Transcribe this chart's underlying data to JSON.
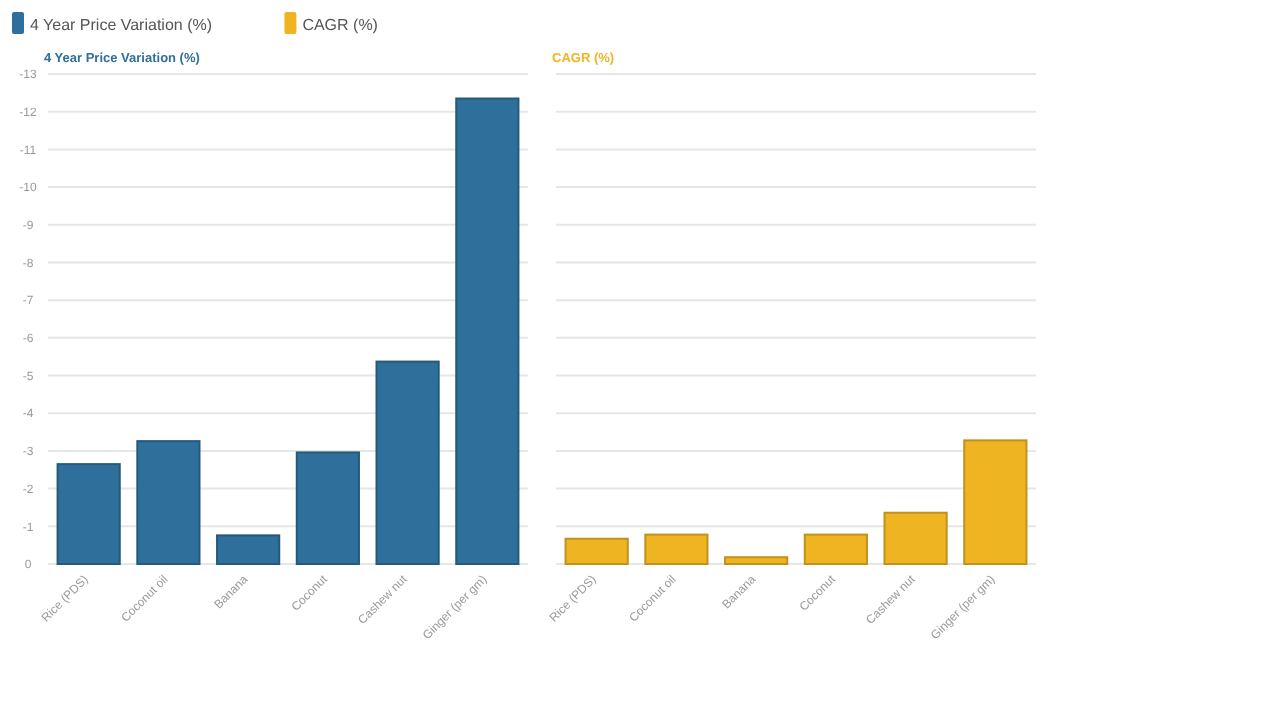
{
  "chart_data": [
    {
      "type": "bar",
      "title": "4 Year Price Variation (%)",
      "categories": [
        "Rice (PDS)",
        "Coconut oil",
        "Banana",
        "Coconut",
        "Cashew nut",
        "Ginger (per gm)"
      ],
      "series": [
        {
          "name": "4 Year Price Variation (%)",
          "color": "#2e6f9b",
          "values": [
            -2.65,
            -3.26,
            -0.76,
            -2.96,
            -5.37,
            -12.35
          ]
        }
      ],
      "ylim": [
        0,
        -13
      ],
      "yticks": [
        0,
        -1,
        -2,
        -3,
        -4,
        -5,
        -6,
        -7,
        -8,
        -9,
        -10,
        -11,
        -12,
        -13
      ],
      "grid": "y",
      "legend": "top left"
    },
    {
      "type": "bar",
      "title": "CAGR (%)",
      "categories": [
        "Rice (PDS)",
        "Coconut oil",
        "Banana",
        "Coconut",
        "Cashew nut",
        "Ginger (per gm)"
      ],
      "series": [
        {
          "name": "CAGR (%)",
          "color": "#efb421",
          "values": [
            -0.67,
            -0.78,
            -0.18,
            -0.78,
            -1.36,
            -3.28
          ]
        }
      ],
      "ylim": [
        0,
        -13
      ],
      "yticks": [
        0,
        -1,
        -2,
        -3,
        -4,
        -5,
        -6,
        -7,
        -8,
        -9,
        -10,
        -11,
        -12,
        -13
      ],
      "grid": "y",
      "legend": "top left",
      "tick_labels": "x"
    }
  ]
}
